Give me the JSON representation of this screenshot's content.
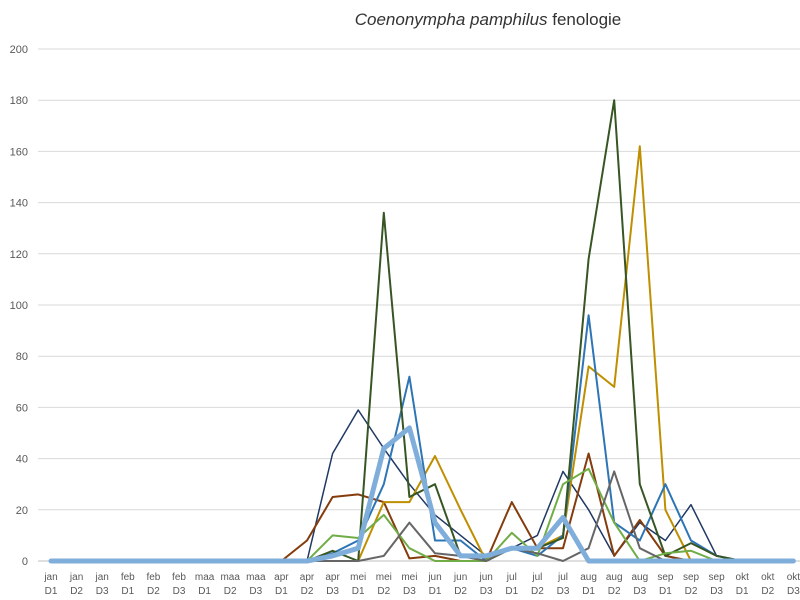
{
  "chart_data": {
    "type": "line",
    "title_italic": "Coenonympha pamphilus",
    "title_rest": " fenologie",
    "xlabel": "",
    "ylabel": "",
    "ylim": [
      0,
      200
    ],
    "yticks": [
      0,
      20,
      40,
      60,
      80,
      100,
      120,
      140,
      160,
      180,
      200
    ],
    "grid": true,
    "categories": [
      [
        "jan",
        "D1"
      ],
      [
        "jan",
        "D2"
      ],
      [
        "jan",
        "D3"
      ],
      [
        "feb",
        "D1"
      ],
      [
        "feb",
        "D2"
      ],
      [
        "feb",
        "D3"
      ],
      [
        "maa",
        "D1"
      ],
      [
        "maa",
        "D2"
      ],
      [
        "maa",
        "D3"
      ],
      [
        "apr",
        "D1"
      ],
      [
        "apr",
        "D2"
      ],
      [
        "apr",
        "D3"
      ],
      [
        "mei",
        "D1"
      ],
      [
        "mei",
        "D2"
      ],
      [
        "mei",
        "D3"
      ],
      [
        "jun",
        "D1"
      ],
      [
        "jun",
        "D2"
      ],
      [
        "jun",
        "D3"
      ],
      [
        "jul",
        "D1"
      ],
      [
        "jul",
        "D2"
      ],
      [
        "jul",
        "D3"
      ],
      [
        "aug",
        "D1"
      ],
      [
        "aug",
        "D2"
      ],
      [
        "aug",
        "D3"
      ],
      [
        "sep",
        "D1"
      ],
      [
        "sep",
        "D2"
      ],
      [
        "sep",
        "D3"
      ],
      [
        "okt",
        "D1"
      ],
      [
        "okt",
        "D2"
      ],
      [
        "okt",
        "D3"
      ]
    ],
    "series": [
      {
        "color": "#1f3864",
        "width": 1.5,
        "values": [
          0,
          0,
          0,
          0,
          0,
          0,
          0,
          0,
          0,
          0,
          0,
          42,
          59,
          44,
          30,
          18,
          10,
          2,
          5,
          10,
          35,
          20,
          2,
          15,
          8,
          22,
          2,
          0,
          0,
          0
        ]
      },
      {
        "color": "#843c0c",
        "width": 2,
        "values": [
          0,
          0,
          0,
          0,
          0,
          0,
          0,
          0,
          0,
          0,
          8,
          25,
          26,
          23,
          1,
          2,
          0,
          0,
          23,
          5,
          5,
          42,
          2,
          16,
          2,
          0,
          0,
          0,
          0,
          0
        ]
      },
      {
        "color": "#bf8f00",
        "width": 2,
        "values": [
          0,
          0,
          0,
          0,
          0,
          0,
          0,
          0,
          0,
          0,
          0,
          0,
          0,
          23,
          23,
          41,
          20,
          0,
          5,
          5,
          10,
          76,
          68,
          162,
          20,
          0,
          0,
          0,
          0,
          0
        ]
      },
      {
        "color": "#2e75b6",
        "width": 2,
        "values": [
          0,
          0,
          0,
          0,
          0,
          0,
          0,
          0,
          0,
          0,
          0,
          3,
          8,
          30,
          72,
          8,
          8,
          0,
          5,
          2,
          10,
          96,
          15,
          8,
          30,
          8,
          2,
          0,
          0,
          0
        ]
      },
      {
        "color": "#375623",
        "width": 2,
        "values": [
          0,
          0,
          0,
          0,
          0,
          0,
          0,
          0,
          0,
          0,
          0,
          4,
          0,
          136,
          25,
          30,
          2,
          0,
          5,
          5,
          9,
          118,
          180,
          30,
          2,
          7,
          2,
          0,
          0,
          0
        ]
      },
      {
        "color": "#70ad47",
        "width": 2,
        "values": [
          0,
          0,
          0,
          0,
          0,
          0,
          0,
          0,
          0,
          0,
          0,
          10,
          9,
          18,
          5,
          0,
          0,
          0,
          11,
          2,
          30,
          36,
          15,
          0,
          3,
          4,
          0,
          0,
          0,
          0
        ]
      },
      {
        "color": "#666666",
        "width": 2,
        "values": [
          0,
          0,
          0,
          0,
          0,
          0,
          0,
          0,
          0,
          0,
          0,
          0,
          0,
          2,
          15,
          3,
          2,
          0,
          5,
          3,
          0,
          5,
          35,
          5,
          0,
          0,
          0,
          0,
          0,
          0
        ]
      },
      {
        "color": "#7faedb",
        "width": 5,
        "values": [
          0,
          0,
          0,
          0,
          0,
          0,
          0,
          0,
          0,
          0,
          0,
          2,
          5,
          44,
          52,
          15,
          2,
          2,
          5,
          5,
          17,
          0,
          0,
          0,
          0,
          0,
          0,
          0,
          0,
          0
        ]
      }
    ]
  }
}
